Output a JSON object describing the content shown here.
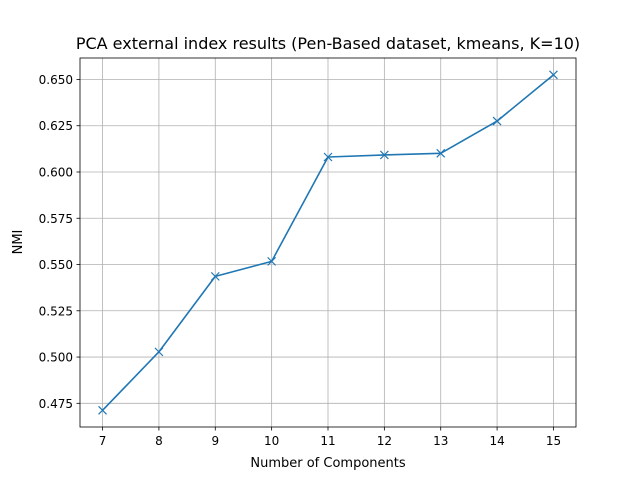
{
  "chart_data": {
    "type": "line",
    "title": "PCA external index results (Pen-Based dataset, kmeans, K=10)",
    "xlabel": "Number of Components",
    "ylabel": "NMI",
    "x": [
      7,
      8,
      9,
      10,
      11,
      12,
      13,
      14,
      15
    ],
    "series": [
      {
        "values": [
          0.4712,
          0.5028,
          0.5436,
          0.5517,
          0.6081,
          0.6092,
          0.6101,
          0.6275,
          0.6525
        ]
      }
    ],
    "xticks": [
      "7",
      "8",
      "9",
      "10",
      "11",
      "12",
      "13",
      "14",
      "15"
    ],
    "yticks": [
      "0.475",
      "0.500",
      "0.525",
      "0.550",
      "0.575",
      "0.600",
      "0.625",
      "0.650"
    ],
    "xlim": [
      6.6,
      15.4
    ],
    "ylim": [
      0.4622,
      0.6616
    ],
    "grid": true,
    "marker": "x",
    "line_color": "#1f77b4",
    "grid_color": "#b0b0b0"
  }
}
